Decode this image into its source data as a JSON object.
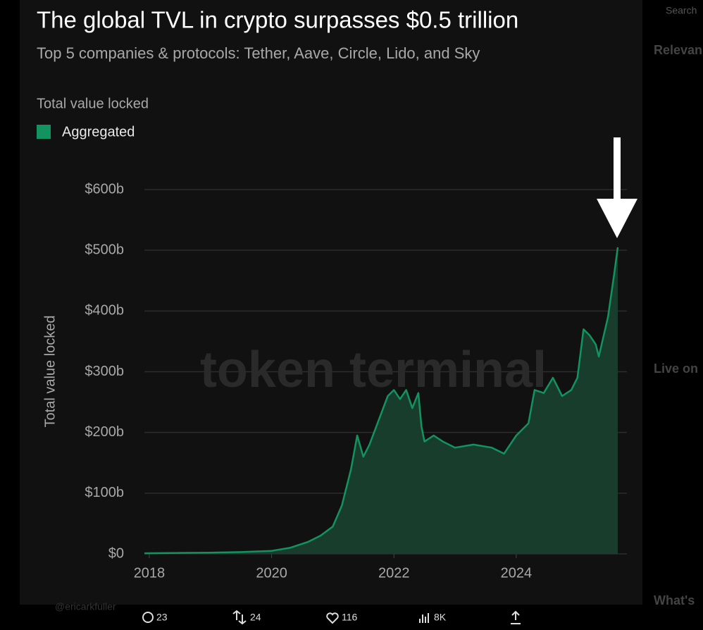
{
  "chart_data": {
    "type": "area",
    "title": "The global TVL in crypto surpasses $0.5 trillion",
    "subtitle": "Top 5 companies & protocols: Tether, Aave, Circle, Lido, and Sky",
    "legend_title": "Total value locked",
    "ylabel": "Total value locked",
    "watermark": "token terminal",
    "series": [
      {
        "name": "Aggregated",
        "color": "#12935f",
        "fill": "#183d2c",
        "x": [
          2017.92,
          2019,
          2019.5,
          2020,
          2020.3,
          2020.6,
          2020.8,
          2021.0,
          2021.15,
          2021.3,
          2021.4,
          2021.5,
          2021.6,
          2021.75,
          2021.9,
          2022.0,
          2022.1,
          2022.2,
          2022.3,
          2022.4,
          2022.45,
          2022.5,
          2022.65,
          2022.8,
          2023.0,
          2023.3,
          2023.6,
          2023.8,
          2024.0,
          2024.2,
          2024.3,
          2024.45,
          2024.6,
          2024.75,
          2024.9,
          2025.0,
          2025.1,
          2025.2,
          2025.3,
          2025.35,
          2025.5,
          2025.6,
          2025.66
        ],
        "values": [
          1,
          2,
          3,
          5,
          10,
          20,
          30,
          45,
          80,
          140,
          195,
          160,
          180,
          220,
          260,
          270,
          255,
          270,
          240,
          265,
          210,
          185,
          195,
          185,
          175,
          180,
          175,
          165,
          195,
          215,
          270,
          265,
          290,
          260,
          270,
          290,
          370,
          360,
          345,
          325,
          390,
          460,
          505
        ]
      }
    ],
    "xlim": [
      2017.92,
      2025.81
    ],
    "xticks": [
      2018,
      2020,
      2022,
      2024
    ],
    "ylim": [
      0,
      600
    ],
    "yticks": [
      {
        "value": 0,
        "label": "$0"
      },
      {
        "value": 100,
        "label": "$100b"
      },
      {
        "value": 200,
        "label": "$200b"
      },
      {
        "value": 300,
        "label": "$300b"
      },
      {
        "value": 400,
        "label": "$400b"
      },
      {
        "value": 500,
        "label": "$500b"
      },
      {
        "value": 600,
        "label": "$600b"
      }
    ],
    "grid": true
  },
  "tweet": {
    "handle": "@ericarkfuller",
    "actions": [
      "23",
      "24",
      "116",
      "8K"
    ]
  },
  "sidebar": {
    "search": "Search",
    "headings": [
      "Relevan",
      "Live on",
      "What's"
    ]
  }
}
